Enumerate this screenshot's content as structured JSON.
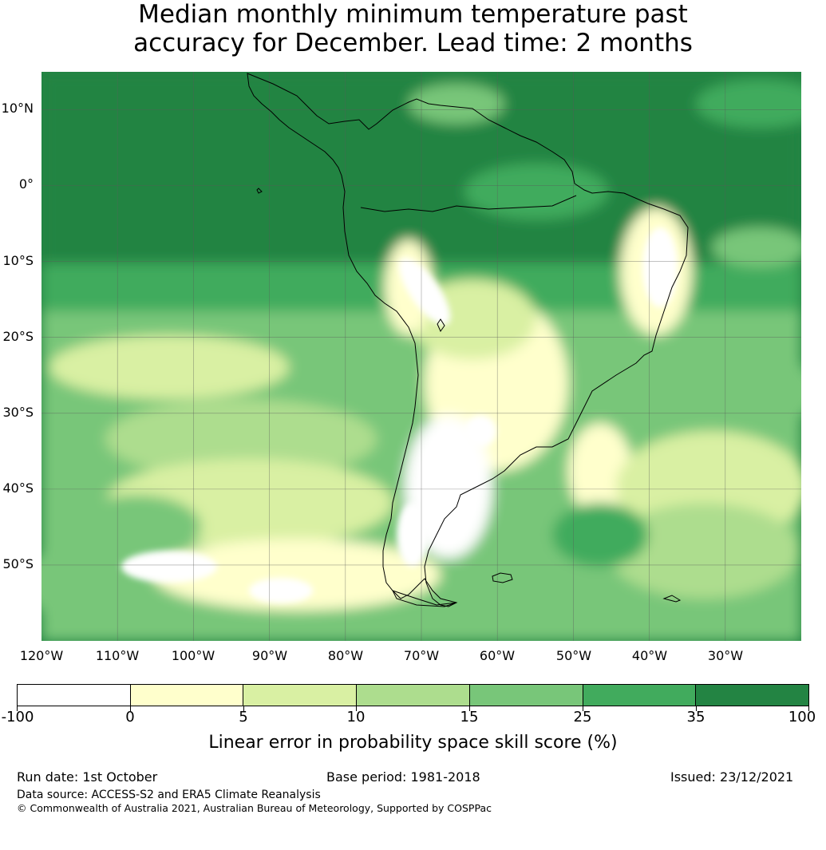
{
  "title": {
    "line1": "Median monthly minimum temperature past",
    "line2": "accuracy for December. Lead time: 2 months"
  },
  "map": {
    "lat_labels": [
      "10°N",
      "0°",
      "10°S",
      "20°S",
      "30°S",
      "40°S",
      "50°S"
    ],
    "lon_labels": [
      "120°W",
      "110°W",
      "100°W",
      "90°W",
      "80°W",
      "70°W",
      "60°W",
      "50°W",
      "40°W",
      "30°W"
    ],
    "extent": {
      "lon_min": -120,
      "lon_max": -20,
      "lat_min": -60,
      "lat_max": 15
    },
    "background_color": "#238443",
    "gridline_color": "#5a5a5a",
    "coastline_color": "#000000"
  },
  "colorbar": {
    "tick_labels": [
      "-100",
      "0",
      "5",
      "10",
      "15",
      "25",
      "35",
      "100"
    ],
    "colors": [
      "#ffffff",
      "#ffffcc",
      "#d9f0a3",
      "#addd8e",
      "#78c679",
      "#41ab5d",
      "#238443"
    ],
    "title": "Linear error in probability space skill score (%)"
  },
  "footer": {
    "run_date": "Run date: 1st October",
    "base_period": "Base period: 1981-2018",
    "issued": "Issued: 23/12/2021",
    "data_source": "Data source: ACCESS-S2 and ERA5 Climate Reanalysis",
    "copyright": "© Commonwealth of Australia 2021, Australian Bureau of Meteorology, Supported by COSPPac"
  }
}
